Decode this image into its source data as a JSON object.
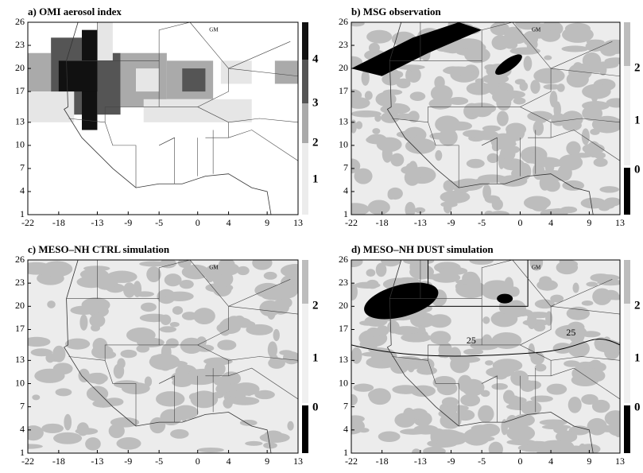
{
  "panels": [
    {
      "title": "a) OMI aerosol index",
      "x_ticks": [
        -22,
        -18,
        -13,
        -9,
        -5,
        0,
        4,
        9,
        13
      ],
      "y_ticks": [
        26,
        23,
        20,
        17,
        13,
        10,
        7,
        4,
        1
      ],
      "colorbar_labels": [
        4,
        3,
        2,
        1
      ],
      "map_labels": [
        "GM"
      ]
    },
    {
      "title": "b) MSG observation",
      "x_ticks": [
        -22,
        -18,
        -13,
        -9,
        -5,
        0,
        4,
        9,
        13
      ],
      "y_ticks": [
        26,
        23,
        20,
        17,
        13,
        10,
        7,
        4,
        1
      ],
      "colorbar_labels": [
        2,
        1,
        0
      ],
      "map_labels": [
        "GM"
      ]
    },
    {
      "title": "c) MESO–NH CTRL simulation",
      "x_ticks": [
        -22,
        -18,
        -13,
        -9,
        -5,
        0,
        4,
        9,
        13
      ],
      "y_ticks": [
        26,
        23,
        20,
        17,
        13,
        10,
        7,
        4,
        1
      ],
      "colorbar_labels": [
        2,
        1,
        0
      ],
      "map_labels": [
        "GM"
      ]
    },
    {
      "title": "d) MESO–NH DUST simulation",
      "x_ticks": [
        -22,
        -18,
        -13,
        -9,
        -5,
        0,
        4,
        9,
        13
      ],
      "y_ticks": [
        26,
        23,
        20,
        17,
        13,
        10,
        7,
        4,
        1
      ],
      "colorbar_labels": [
        2,
        1,
        0
      ],
      "map_labels": [
        "GM",
        "25",
        "25"
      ]
    }
  ]
}
